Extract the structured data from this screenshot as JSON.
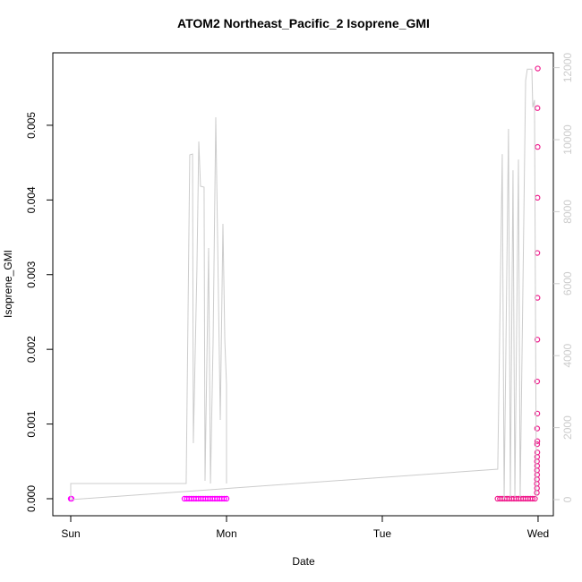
{
  "chart_data": {
    "type": "scatter",
    "title": "ATOM2 Northeast_Pacific_2 Isoprene_GMI",
    "x_label": "Date",
    "y_label": "Isoprene_GMI",
    "xlim": [
      -0.115,
      3.098
    ],
    "xticks": [
      {
        "value": 0,
        "label": "Sun"
      },
      {
        "value": 1,
        "label": "Mon"
      },
      {
        "value": 2,
        "label": "Tue"
      },
      {
        "value": 3,
        "label": "Wed"
      }
    ],
    "ylim": [
      -0.000228,
      0.00597
    ],
    "yticks": [
      {
        "value": 0,
        "label": "0.000"
      },
      {
        "value": 0.001,
        "label": "0.001"
      },
      {
        "value": 0.002,
        "label": "0.002"
      },
      {
        "value": 0.003,
        "label": "0.003"
      },
      {
        "value": 0.004,
        "label": "0.004"
      },
      {
        "value": 0.005,
        "label": "0.005"
      }
    ],
    "y2lim": [
      -448,
      12413
    ],
    "y2ticks": [
      0,
      2000,
      4000,
      6000,
      8000,
      10000,
      12000
    ],
    "series": [
      {
        "color": "#ff00ff",
        "marker": "circle",
        "x": [
          0,
          0.005,
          0.73,
          0.745,
          0.76,
          0.775,
          0.79,
          0.805,
          0.82,
          0.835,
          0.85,
          0.865,
          0.88,
          0.895,
          0.91,
          0.925,
          0.94,
          0.955,
          0.97,
          0.985,
          1.0
        ],
        "values": [
          0,
          0,
          0,
          0,
          0,
          0,
          0,
          0,
          0,
          0,
          0,
          0,
          0,
          0,
          0,
          0,
          0,
          0,
          0,
          0,
          0
        ]
      },
      {
        "color": "#f0208f",
        "marker": "circle",
        "x": [
          2.74,
          2.755,
          2.77,
          2.785,
          2.8,
          2.815,
          2.83,
          2.845,
          2.86,
          2.875,
          2.89,
          2.905,
          2.92,
          2.935,
          2.95,
          2.965,
          2.98,
          2.998,
          2.996,
          2.997,
          2.996,
          2.995,
          2.996,
          2.995,
          2.994,
          2.995,
          2.994,
          2.995,
          2.994,
          2.995,
          2.994,
          2.993,
          2.994,
          2.993,
          2.994,
          2.993,
          2.992,
          2.993,
          2.992
        ],
        "values": [
          0,
          0,
          0,
          0,
          0,
          0,
          0,
          0,
          0,
          0,
          0,
          0,
          0,
          0,
          0,
          0,
          0,
          0.00576,
          0.00523,
          0.00471,
          0.00403,
          0.00329,
          0.00269,
          0.00213,
          0.00157,
          0.00114,
          0.00094,
          0.00077,
          0.00073,
          0.00062,
          0.00056,
          0.0005,
          0.00044,
          0.00038,
          0.00032,
          0.00026,
          0.0002,
          0.00014,
          8e-05
        ]
      },
      {
        "color": "#cccccc",
        "marker": "line",
        "axis": "y2",
        "x": [
          0,
          0,
          0.741,
          0.764,
          0.782,
          0.787,
          0.81,
          0.822,
          0.833,
          0.856,
          0.862,
          0.885,
          0.897,
          0.914,
          0.931,
          0.96,
          0.977,
          0.989,
          1.0,
          1.0,
          null,
          0,
          2.741,
          2.77,
          2.782,
          2.81,
          2.822,
          2.839,
          2.851,
          2.874,
          2.885,
          2.92,
          2.931,
          2.96,
          2.966,
          2.977,
          2.989
        ],
        "values": [
          0,
          448,
          448,
          9577,
          9602,
          1567,
          6418,
          9950,
          8706,
          8682,
          522,
          6990,
          448,
          4428,
          10622,
          2214,
          7662,
          4428,
          3184,
          448,
          null,
          0,
          846,
          9600,
          25,
          10300,
          75,
          9150,
          75,
          9450,
          75,
          11640,
          11960,
          11960,
          10900,
          11100,
          75
        ]
      }
    ]
  }
}
